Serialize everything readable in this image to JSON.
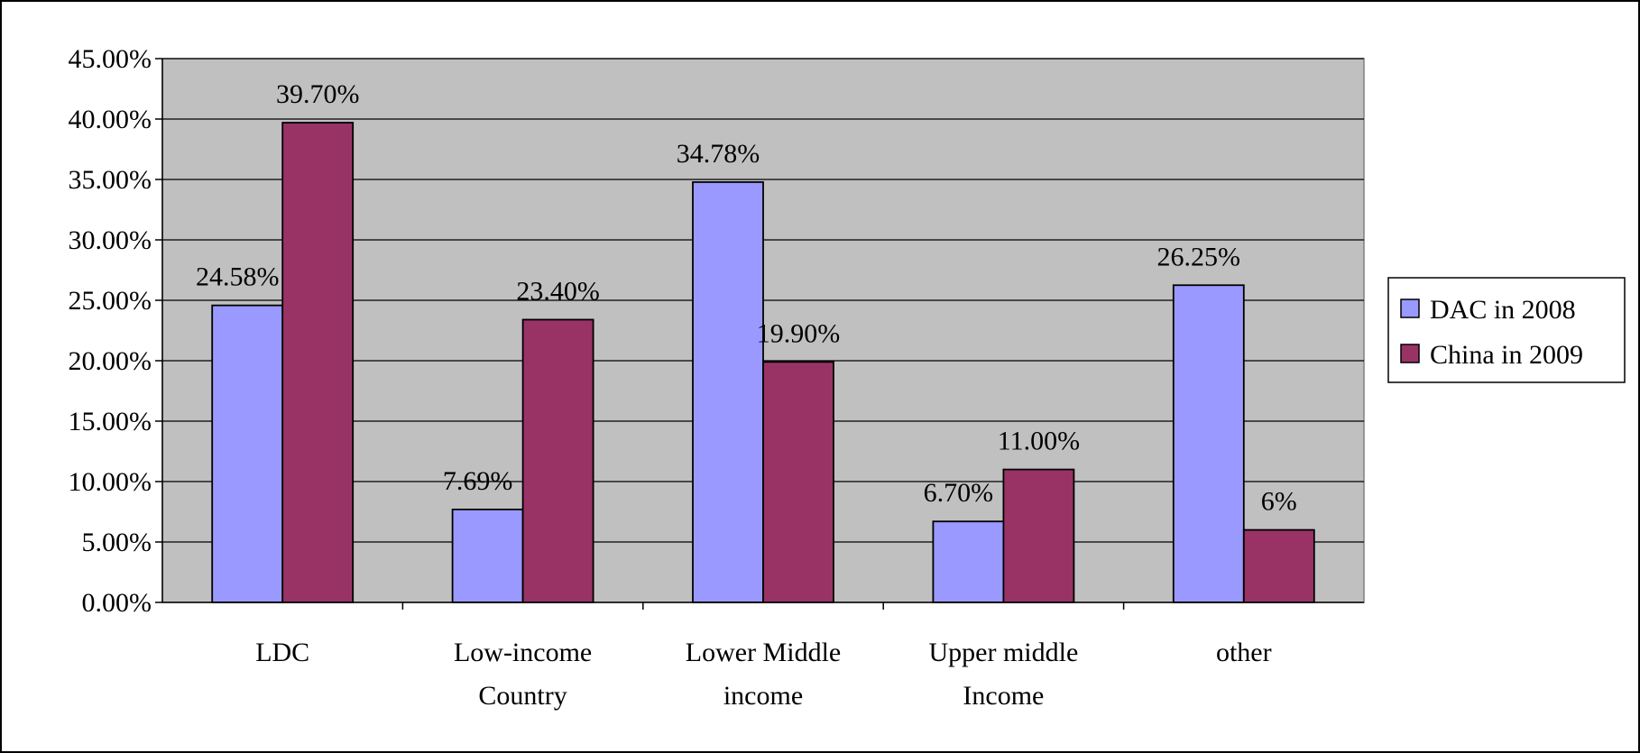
{
  "chart_data": {
    "type": "bar",
    "categories": [
      [
        "LDC"
      ],
      [
        "Low-income",
        "Country"
      ],
      [
        "Lower Middle",
        "income"
      ],
      [
        "Upper middle",
        "Income"
      ],
      [
        "other"
      ]
    ],
    "series": [
      {
        "name": "DAC in 2008",
        "color": "#9999ff",
        "values": [
          24.58,
          7.69,
          34.78,
          6.7,
          26.25
        ],
        "labels": [
          "24.58%",
          "7.69%",
          "34.78%",
          "6.70%",
          "26.25%"
        ]
      },
      {
        "name": "China in 2009",
        "color": "#993366",
        "values": [
          39.7,
          23.4,
          19.9,
          11.0,
          6.0
        ],
        "labels": [
          "39.70%",
          "23.40%",
          "19.90%",
          "11.00%",
          "6%"
        ]
      }
    ],
    "y_ticks": [
      "0.00%",
      "5.00%",
      "10.00%",
      "15.00%",
      "20.00%",
      "25.00%",
      "30.00%",
      "35.00%",
      "40.00%",
      "45.00%"
    ],
    "ylim": [
      0,
      45
    ],
    "grid": true,
    "plot_background": "#c0c0c0",
    "legend": {
      "placement": "right",
      "entries": [
        "DAC in 2008",
        "China in 2009"
      ]
    }
  }
}
